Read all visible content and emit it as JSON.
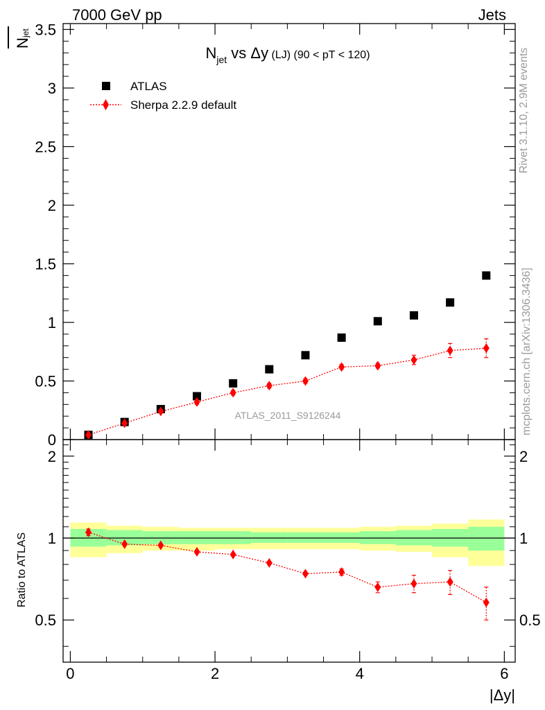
{
  "header": {
    "left": "7000 GeV pp",
    "right": "Jets"
  },
  "side_labels": {
    "rivet": "Rivet 3.1.10,  2.9M events",
    "mcplots": "mcplots.cern.ch [arXiv:1306.3436]"
  },
  "title": {
    "n": "N",
    "n_sub": "jet",
    "vs": " vs Δy",
    "lj": " (LJ)",
    "range": " (90 < pT < 120)"
  },
  "ylabel_top": {
    "main": "N",
    "sub": "jet"
  },
  "ylabel_ratio": "Ratio to ATLAS",
  "xlabel": "|Δy|",
  "watermark": "ATLAS_2011_S9126244",
  "legend": [
    {
      "label": "ATLAS",
      "marker": "square",
      "color": "#000000"
    },
    {
      "label": "Sherpa 2.2.9 default",
      "marker": "diamond",
      "color": "#ff0000"
    }
  ],
  "chart_data": [
    {
      "type": "scatter",
      "panel": "main",
      "x": [
        0.25,
        0.75,
        1.25,
        1.75,
        2.25,
        2.75,
        3.25,
        3.75,
        4.25,
        4.75,
        5.25,
        5.75
      ],
      "xlim": [
        -0.1,
        6.15
      ],
      "ylim": [
        0,
        3.55
      ],
      "xticks": [
        0,
        2,
        4,
        6
      ],
      "yticks": [
        0,
        0.5,
        1,
        1.5,
        2,
        2.5,
        3,
        3.5
      ],
      "ytick_labels": [
        "0",
        "0.5",
        "1",
        "1.5",
        "2",
        "2.5",
        "3",
        "3.5"
      ],
      "series": [
        {
          "name": "ATLAS",
          "values": [
            0.04,
            0.15,
            0.26,
            0.37,
            0.48,
            0.6,
            0.72,
            0.87,
            1.01,
            1.06,
            1.17,
            1.4
          ],
          "color": "#000000"
        },
        {
          "name": "Sherpa 2.2.9 default",
          "values": [
            0.04,
            0.14,
            0.24,
            0.32,
            0.4,
            0.46,
            0.5,
            0.62,
            0.63,
            0.68,
            0.76,
            0.78
          ],
          "errors": [
            0.01,
            0.01,
            0.01,
            0.02,
            0.02,
            0.02,
            0.02,
            0.02,
            0.02,
            0.04,
            0.06,
            0.08
          ],
          "color": "#ff0000"
        }
      ]
    },
    {
      "type": "scatter",
      "panel": "ratio",
      "x": [
        0.25,
        0.75,
        1.25,
        1.75,
        2.25,
        2.75,
        3.25,
        3.75,
        4.25,
        4.75,
        5.25,
        5.75
      ],
      "xlim": [
        -0.1,
        6.15
      ],
      "ylim": [
        0.35,
        2.3
      ],
      "xticks": [
        0,
        2,
        4,
        6
      ],
      "yticks": [
        0.5,
        1,
        2
      ],
      "ytick_labels": [
        "0.5",
        "1",
        "2"
      ],
      "bands": {
        "edges": [
          0,
          0.5,
          1,
          1.5,
          2,
          2.5,
          3,
          3.5,
          4,
          4.5,
          5,
          5.5,
          6
        ],
        "green_lo": [
          0.93,
          0.94,
          0.95,
          0.95,
          0.95,
          0.96,
          0.96,
          0.96,
          0.95,
          0.94,
          0.93,
          0.9
        ],
        "green_hi": [
          1.08,
          1.07,
          1.06,
          1.06,
          1.06,
          1.05,
          1.05,
          1.05,
          1.06,
          1.07,
          1.08,
          1.1
        ],
        "yellow_lo": [
          0.85,
          0.88,
          0.9,
          0.9,
          0.91,
          0.91,
          0.91,
          0.91,
          0.9,
          0.89,
          0.85,
          0.79
        ],
        "yellow_hi": [
          1.14,
          1.11,
          1.1,
          1.09,
          1.09,
          1.09,
          1.09,
          1.09,
          1.1,
          1.11,
          1.13,
          1.17
        ],
        "green_color": "#99ff99",
        "yellow_color": "#ffff99"
      },
      "series": [
        {
          "name": "Sherpa 2.2.9 default",
          "values": [
            1.05,
            0.95,
            0.94,
            0.89,
            0.87,
            0.81,
            0.74,
            0.75,
            0.66,
            0.68,
            0.69,
            0.58
          ],
          "errors": [
            0.03,
            0.01,
            0.01,
            0.01,
            0.01,
            0.01,
            0.01,
            0.02,
            0.03,
            0.05,
            0.07,
            0.08
          ],
          "color": "#ff0000"
        }
      ]
    }
  ]
}
